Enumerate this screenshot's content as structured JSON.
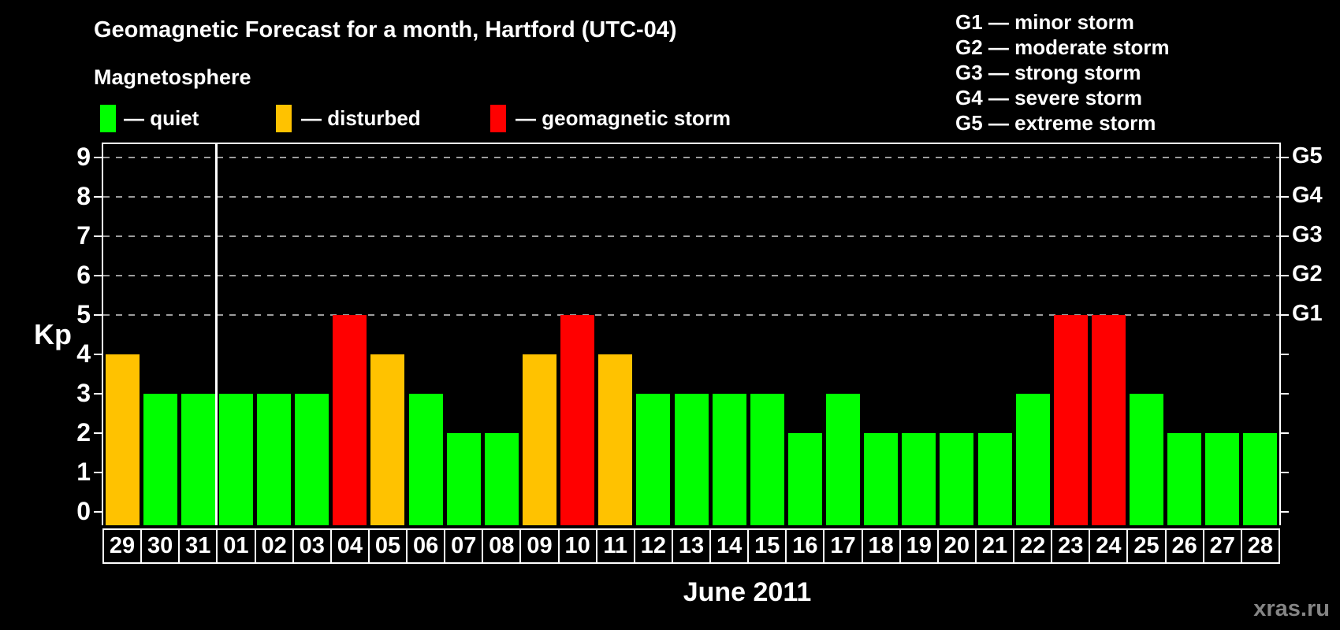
{
  "header": {
    "title": "Geomagnetic Forecast for a month, Hartford (UTC-04)",
    "subtitle": "Magnetosphere"
  },
  "legend": {
    "items": [
      {
        "name": "quiet",
        "label": "— quiet",
        "color": "#00ff00"
      },
      {
        "name": "disturbed",
        "label": "— disturbed",
        "color": "#ffc200"
      },
      {
        "name": "storm",
        "label": "— geomagnetic storm",
        "color": "#ff0000"
      }
    ]
  },
  "g_scale_legend": {
    "lines": [
      "G1 — minor storm",
      "G2 — moderate storm",
      "G3 — strong storm",
      "G4 — severe storm",
      "G5 — extreme storm"
    ]
  },
  "axes": {
    "y_label": "Kp",
    "y_ticks": [
      "0",
      "1",
      "2",
      "3",
      "4",
      "5",
      "6",
      "7",
      "8",
      "9"
    ],
    "right_labels": [
      {
        "label": "G1",
        "value": 5
      },
      {
        "label": "G2",
        "value": 6
      },
      {
        "label": "G3",
        "value": 7
      },
      {
        "label": "G4",
        "value": 8
      },
      {
        "label": "G5",
        "value": 9
      }
    ],
    "x_label": "June 2011"
  },
  "watermark": "xras.ru",
  "chart_data": {
    "type": "bar",
    "title": "Geomagnetic Forecast for a month, Hartford (UTC-04)",
    "xlabel": "June 2011",
    "ylabel": "Kp",
    "ylim": [
      0,
      9.7
    ],
    "yticks": [
      0,
      1,
      2,
      3,
      4,
      5,
      6,
      7,
      8,
      9
    ],
    "grid": "dashed horizontal lines at storm levels only",
    "grid_levels": [
      5,
      6,
      7,
      8,
      9
    ],
    "legend_position": "top-left",
    "categories": [
      "29",
      "30",
      "31",
      "01",
      "02",
      "03",
      "04",
      "05",
      "06",
      "07",
      "08",
      "09",
      "10",
      "11",
      "12",
      "13",
      "14",
      "15",
      "16",
      "17",
      "18",
      "19",
      "20",
      "21",
      "22",
      "23",
      "24",
      "25",
      "26",
      "27",
      "28"
    ],
    "values": [
      4,
      3,
      3,
      3,
      3,
      3,
      5,
      4,
      3,
      2,
      2,
      4,
      5,
      4,
      3,
      3,
      3,
      3,
      2,
      3,
      2,
      2,
      2,
      2,
      3,
      5,
      5,
      3,
      2,
      2,
      2
    ],
    "statuses": [
      "disturbed",
      "quiet",
      "quiet",
      "quiet",
      "quiet",
      "quiet",
      "storm",
      "disturbed",
      "quiet",
      "quiet",
      "quiet",
      "disturbed",
      "storm",
      "disturbed",
      "quiet",
      "quiet",
      "quiet",
      "quiet",
      "quiet",
      "quiet",
      "quiet",
      "quiet",
      "quiet",
      "quiet",
      "quiet",
      "storm",
      "storm",
      "quiet",
      "quiet",
      "quiet",
      "quiet"
    ],
    "status_colors": {
      "quiet": "#00ff00",
      "disturbed": "#ffc200",
      "storm": "#ff0000"
    },
    "month_boundary_after": "31"
  }
}
